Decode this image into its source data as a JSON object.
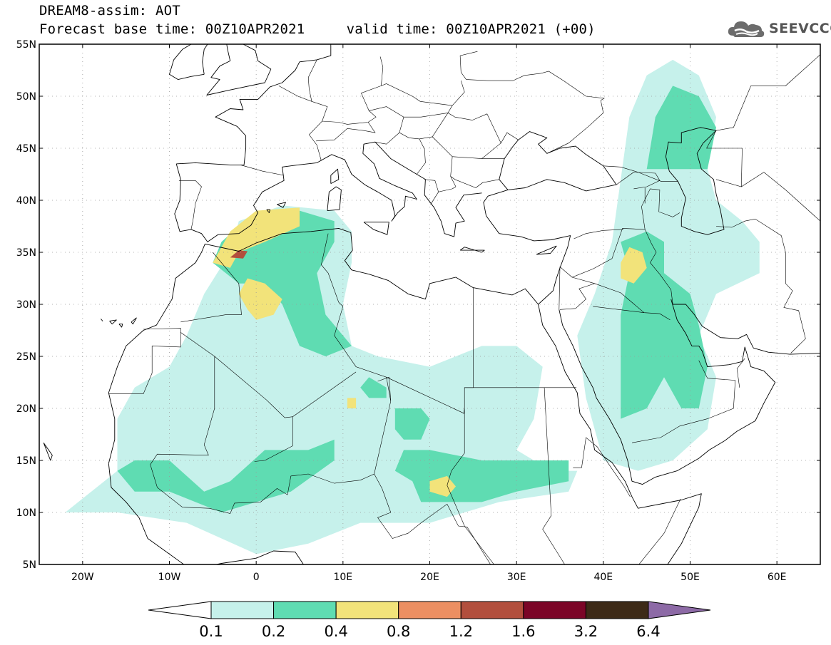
{
  "header": {
    "line1": "DREAM8-assim: AOT",
    "line2": "Forecast base time: 00Z10APR2021     valid time: 00Z10APR2021 (+00)",
    "logo_text": "SEEVCCC",
    "logo_icon": "cloud-icon"
  },
  "map": {
    "projection": "lat-lon",
    "lon_range": [
      -25,
      65
    ],
    "lat_range": [
      5,
      55
    ],
    "lat_ticks": [
      {
        "value": 55,
        "label": "55N"
      },
      {
        "value": 50,
        "label": "50N"
      },
      {
        "value": 45,
        "label": "45N"
      },
      {
        "value": 40,
        "label": "40N"
      },
      {
        "value": 35,
        "label": "35N"
      },
      {
        "value": 30,
        "label": "30N"
      },
      {
        "value": 25,
        "label": "25N"
      },
      {
        "value": 20,
        "label": "20N"
      },
      {
        "value": 15,
        "label": "15N"
      },
      {
        "value": 10,
        "label": "10N"
      },
      {
        "value": 5,
        "label": "5N"
      }
    ],
    "lon_ticks": [
      {
        "value": -20,
        "label": "20W"
      },
      {
        "value": -10,
        "label": "10W"
      },
      {
        "value": 0,
        "label": "0"
      },
      {
        "value": 10,
        "label": "10E"
      },
      {
        "value": 20,
        "label": "20E"
      },
      {
        "value": 30,
        "label": "30E"
      },
      {
        "value": 40,
        "label": "40E"
      },
      {
        "value": 50,
        "label": "50E"
      },
      {
        "value": 60,
        "label": "60E"
      }
    ],
    "grid": "dotted"
  },
  "colorbar": {
    "labels": [
      "0.1",
      "0.2",
      "0.4",
      "0.8",
      "1.2",
      "1.6",
      "3.2",
      "6.4"
    ],
    "colors": [
      "#ffffff",
      "#c6f1eb",
      "#5fdcb2",
      "#f2e37a",
      "#ec8f62",
      "#b24f3d",
      "#7b0527",
      "#3d2a17",
      "#8d6aa6"
    ],
    "extend": "both"
  },
  "chart_data": {
    "type": "heatmap",
    "variable": "AOT",
    "levels": [
      0.1,
      0.2,
      0.4,
      0.8,
      1.2,
      1.6,
      3.2,
      6.4
    ],
    "regions": [
      {
        "level": 0.1,
        "polys": [
          [
            [
              -22,
              10
            ],
            [
              -16,
              14
            ],
            [
              -16,
              19
            ],
            [
              -14,
              22
            ],
            [
              -10,
              24
            ],
            [
              -8,
              27
            ],
            [
              -6,
              31
            ],
            [
              -3,
              35
            ],
            [
              -2,
              38
            ],
            [
              3,
              39.5
            ],
            [
              9,
              39
            ],
            [
              11,
              37
            ],
            [
              11,
              34
            ],
            [
              10,
              30
            ],
            [
              11,
              26
            ],
            [
              14,
              25
            ],
            [
              20,
              24
            ],
            [
              26,
              26
            ],
            [
              30,
              26
            ],
            [
              33,
              24
            ],
            [
              32,
              19
            ],
            [
              30,
              16
            ],
            [
              34,
              14
            ],
            [
              37,
              14
            ],
            [
              36,
              12
            ],
            [
              28,
              11
            ],
            [
              20,
              9
            ],
            [
              12,
              9
            ],
            [
              6,
              7
            ],
            [
              0,
              6
            ],
            [
              -8,
              9
            ],
            [
              -16,
              10
            ]
          ]
        ]
      },
      {
        "level": 0.1,
        "polys": [
          [
            [
              40,
              15
            ],
            [
              38,
              21
            ],
            [
              37,
              27
            ],
            [
              39,
              31
            ],
            [
              41,
              36
            ],
            [
              42,
              42
            ],
            [
              43,
              48
            ],
            [
              45,
              52
            ],
            [
              48,
              53.5
            ],
            [
              51,
              52
            ],
            [
              53,
              48
            ],
            [
              52,
              43
            ],
            [
              53,
              40
            ],
            [
              56,
              38
            ],
            [
              58,
              36
            ],
            [
              58,
              33
            ],
            [
              53,
              31
            ],
            [
              51,
              27
            ],
            [
              53,
              23
            ],
            [
              52,
              18
            ],
            [
              48,
              15
            ],
            [
              44,
              14
            ]
          ]
        ]
      },
      {
        "level": 0.2,
        "polys": [
          [
            [
              -4,
              36
            ],
            [
              0,
              39
            ],
            [
              5,
              39
            ],
            [
              9,
              38
            ],
            [
              9,
              36
            ],
            [
              7,
              33
            ],
            [
              8,
              29
            ],
            [
              10,
              27
            ],
            [
              11,
              26
            ],
            [
              8,
              25
            ],
            [
              5,
              26
            ],
            [
              3,
              30
            ],
            [
              1,
              32
            ],
            [
              -2,
              32
            ],
            [
              -5,
              34
            ]
          ]
        ]
      },
      {
        "level": 0.2,
        "polys": [
          [
            [
              -16,
              14
            ],
            [
              -14,
              15
            ],
            [
              -10,
              15
            ],
            [
              -6,
              12
            ],
            [
              -3,
              13
            ],
            [
              1,
              16
            ],
            [
              6,
              16
            ],
            [
              9,
              17
            ],
            [
              9,
              15
            ],
            [
              4,
              12
            ],
            [
              0,
              11
            ],
            [
              -4,
              10
            ],
            [
              -10,
              12
            ],
            [
              -14,
              12
            ]
          ]
        ]
      },
      {
        "level": 0.2,
        "polys": [
          [
            [
              18,
              13
            ],
            [
              16,
              14
            ],
            [
              17,
              16
            ],
            [
              20,
              16
            ],
            [
              26,
              15
            ],
            [
              30,
              15
            ],
            [
              36,
              15
            ],
            [
              36,
              13
            ],
            [
              30,
              12
            ],
            [
              26,
              11
            ],
            [
              22,
              11
            ],
            [
              19,
              11
            ]
          ]
        ]
      },
      {
        "level": 0.2,
        "polys": [
          [
            [
              42,
              19
            ],
            [
              42,
              24
            ],
            [
              42,
              29
            ],
            [
              43,
              33
            ],
            [
              42,
              36
            ],
            [
              45,
              37
            ],
            [
              47,
              36
            ],
            [
              47,
              33
            ],
            [
              50,
              31
            ],
            [
              51,
              28
            ],
            [
              52,
              24
            ],
            [
              51,
              20
            ],
            [
              49,
              20
            ],
            [
              47,
              23
            ],
            [
              45,
              20
            ]
          ]
        ]
      },
      {
        "level": 0.2,
        "polys": [
          [
            [
              45,
              43
            ],
            [
              46,
              48
            ],
            [
              48,
              51
            ],
            [
              51,
              50
            ],
            [
              53,
              47
            ],
            [
              52,
              43
            ],
            [
              49,
              43
            ]
          ]
        ]
      },
      {
        "level": 0.2,
        "polys": [
          [
            [
              13,
              21
            ],
            [
              12,
              22
            ],
            [
              13,
              23
            ],
            [
              15,
              22
            ],
            [
              15,
              21
            ]
          ]
        ]
      },
      {
        "level": 0.2,
        "polys": [
          [
            [
              16,
              18
            ],
            [
              16,
              20
            ],
            [
              19,
              20
            ],
            [
              20,
              19
            ],
            [
              19,
              17
            ],
            [
              17,
              17
            ]
          ]
        ]
      },
      {
        "level": 0.4,
        "polys": [
          [
            [
              -5,
              34
            ],
            [
              -3,
              37
            ],
            [
              0,
              39
            ],
            [
              5,
              39.3
            ],
            [
              5,
              37.5
            ],
            [
              1,
              36
            ],
            [
              -2,
              35
            ],
            [
              -3,
              33.5
            ]
          ]
        ]
      },
      {
        "level": 0.4,
        "polys": [
          [
            [
              -2,
              31
            ],
            [
              -1,
              32.5
            ],
            [
              1,
              32
            ],
            [
              3,
              30.5
            ],
            [
              2,
              29
            ],
            [
              0,
              28.5
            ],
            [
              -1,
              29.5
            ]
          ]
        ]
      },
      {
        "level": 0.4,
        "polys": [
          [
            [
              42,
              32.5
            ],
            [
              42,
              34
            ],
            [
              43,
              35.5
            ],
            [
              44.5,
              35
            ],
            [
              45,
              33.5
            ],
            [
              43.5,
              32
            ]
          ]
        ]
      },
      {
        "level": 0.4,
        "polys": [
          [
            [
              20,
              12
            ],
            [
              20,
              13
            ],
            [
              22,
              13.5
            ],
            [
              23,
              12.5
            ],
            [
              22,
              11.5
            ]
          ]
        ]
      },
      {
        "level": 0.4,
        "polys": [
          [
            [
              10.5,
              20
            ],
            [
              10.5,
              21
            ],
            [
              11.5,
              21
            ],
            [
              11.5,
              20
            ]
          ]
        ]
      },
      {
        "level": 1.2,
        "polys": [
          [
            [
              -3,
              34.5
            ],
            [
              -2,
              35.2
            ],
            [
              -1,
              35.1
            ],
            [
              -1.5,
              34.4
            ]
          ]
        ]
      }
    ]
  }
}
